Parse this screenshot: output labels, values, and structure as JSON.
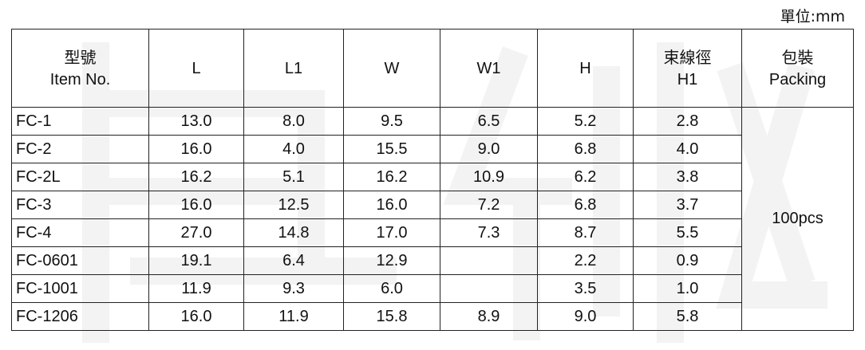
{
  "unit_label": "單位:mm",
  "headers": [
    {
      "line1": "型號",
      "line2": "Item No."
    },
    {
      "line1": "L",
      "line2": ""
    },
    {
      "line1": "L1",
      "line2": ""
    },
    {
      "line1": "W",
      "line2": ""
    },
    {
      "line1": "W1",
      "line2": ""
    },
    {
      "line1": "H",
      "line2": ""
    },
    {
      "line1": "束線徑",
      "line2": "H1"
    },
    {
      "line1": "包裝",
      "line2": "Packing"
    }
  ],
  "rows": [
    {
      "item": "FC-1",
      "L": "13.0",
      "L1": "8.0",
      "W": "9.5",
      "W1": "6.5",
      "H": "5.2",
      "H1": "2.8"
    },
    {
      "item": "FC-2",
      "L": "16.0",
      "L1": "4.0",
      "W": "15.5",
      "W1": "9.0",
      "H": "6.8",
      "H1": "4.0"
    },
    {
      "item": "FC-2L",
      "L": "16.2",
      "L1": "5.1",
      "W": "16.2",
      "W1": "10.9",
      "H": "6.2",
      "H1": "3.8"
    },
    {
      "item": "FC-3",
      "L": "16.0",
      "L1": "12.5",
      "W": "16.0",
      "W1": "7.2",
      "H": "6.8",
      "H1": "3.7"
    },
    {
      "item": "FC-4",
      "L": "27.0",
      "L1": "14.8",
      "W": "17.0",
      "W1": "7.3",
      "H": "8.7",
      "H1": "5.5"
    },
    {
      "item": "FC-0601",
      "L": "19.1",
      "L1": "6.4",
      "W": "12.9",
      "W1": "",
      "H": "2.2",
      "H1": "0.9"
    },
    {
      "item": "FC-1001",
      "L": "11.9",
      "L1": "9.3",
      "W": "6.0",
      "W1": "",
      "H": "3.5",
      "H1": "1.0"
    },
    {
      "item": "FC-1206",
      "L": "16.0",
      "L1": "11.9",
      "W": "15.8",
      "W1": "8.9",
      "H": "9.0",
      "H1": "5.8"
    }
  ],
  "packing": "100pcs",
  "colors": {
    "border": "#222222",
    "text": "#111111",
    "watermark": "#f2f2f2"
  }
}
